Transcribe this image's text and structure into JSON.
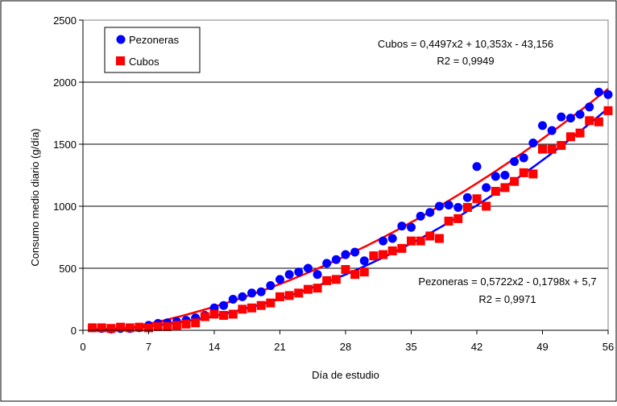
{
  "chart_data": {
    "type": "scatter",
    "title": "",
    "xlabel": "Día de estudio",
    "ylabel": "Consumo medio diario (g/día)",
    "xlim": [
      0,
      56
    ],
    "ylim": [
      0,
      2500
    ],
    "xticks": [
      "0",
      "7",
      "14",
      "21",
      "28",
      "35",
      "42",
      "49",
      "56"
    ],
    "yticks": [
      "0",
      "500",
      "1000",
      "1500",
      "2000",
      "2500"
    ],
    "grid": "horizontal",
    "legend": "top-left",
    "series": [
      {
        "name": "Pezoneras",
        "marker": "circle",
        "color": "#0000ff",
        "x": [
          1,
          2,
          3,
          4,
          5,
          6,
          7,
          8,
          9,
          10,
          11,
          12,
          13,
          14,
          15,
          16,
          17,
          18,
          19,
          20,
          21,
          22,
          23,
          24,
          25,
          26,
          27,
          28,
          29,
          30,
          31,
          32,
          33,
          34,
          35,
          36,
          37,
          38,
          39,
          40,
          41,
          42,
          43,
          44,
          45,
          46,
          47,
          48,
          49,
          50,
          51,
          52,
          53,
          54,
          55,
          56
        ],
        "y": [
          20,
          15,
          10,
          15,
          15,
          20,
          40,
          55,
          60,
          70,
          80,
          100,
          120,
          180,
          200,
          250,
          270,
          300,
          310,
          360,
          410,
          450,
          470,
          500,
          450,
          540,
          570,
          610,
          630,
          560,
          600,
          720,
          740,
          840,
          830,
          920,
          950,
          1000,
          1010,
          990,
          1070,
          1320,
          1150,
          1240,
          1250,
          1360,
          1390,
          1510,
          1650,
          1610,
          1720,
          1710,
          1740,
          1800,
          1920,
          1900
        ]
      },
      {
        "name": "Cubos",
        "marker": "square",
        "color": "#ff0000",
        "x": [
          1,
          2,
          3,
          4,
          5,
          6,
          7,
          8,
          9,
          10,
          11,
          12,
          13,
          14,
          15,
          16,
          17,
          18,
          19,
          20,
          21,
          22,
          23,
          24,
          25,
          26,
          27,
          28,
          29,
          30,
          31,
          32,
          33,
          34,
          35,
          36,
          37,
          38,
          39,
          40,
          41,
          42,
          43,
          44,
          45,
          46,
          47,
          48,
          49,
          50,
          51,
          52,
          53,
          54,
          55,
          56
        ],
        "y": [
          20,
          20,
          15,
          25,
          20,
          25,
          20,
          30,
          30,
          40,
          50,
          60,
          110,
          130,
          120,
          130,
          170,
          180,
          200,
          220,
          270,
          280,
          300,
          330,
          340,
          400,
          410,
          490,
          450,
          470,
          600,
          610,
          640,
          660,
          720,
          720,
          760,
          740,
          880,
          900,
          990,
          1060,
          1000,
          1120,
          1150,
          1200,
          1270,
          1260,
          1460,
          1460,
          1490,
          1560,
          1590,
          1690,
          1680,
          1770
        ]
      }
    ],
    "trendlines": [
      {
        "series": "Pezoneras",
        "equation": "Pezoneras = 0,5722x2 - 0,1798x + 5,7",
        "r2": "R2 = 0,9971",
        "a": 0.5722,
        "b": -0.1798,
        "c": 5.7
      },
      {
        "series": "Cubos",
        "equation": "Cubos = 0,4497x2 + 10,353x - 43,156",
        "r2": "R2 = 0,9949",
        "a": 0.4497,
        "b": 10.353,
        "c": -43.156
      }
    ]
  }
}
